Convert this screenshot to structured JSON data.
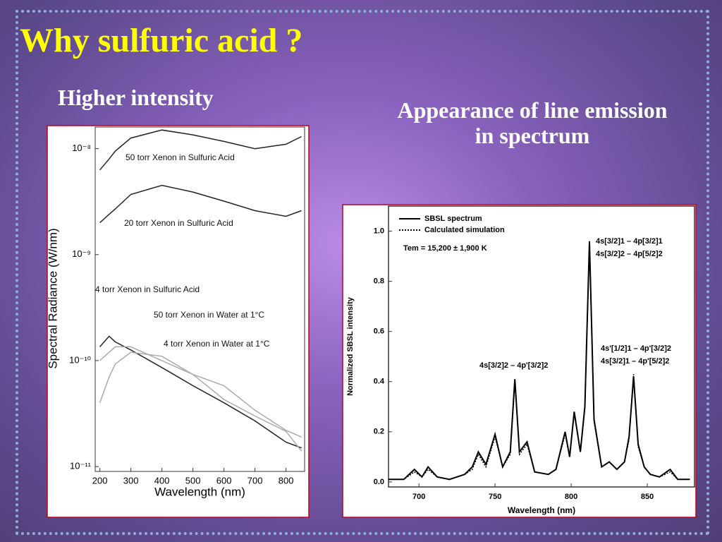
{
  "slide": {
    "title": "Why  sulfuric acid  ?",
    "left_heading": "Higher intensity",
    "right_heading": [
      "Appearance of  line emission",
      "in  spectrum"
    ]
  },
  "chart_data": [
    {
      "type": "line",
      "log_y": true,
      "xlabel": "Wavelength (nm)",
      "ylabel": "Spectral Radiance (W/nm)",
      "x": [
        200,
        230,
        250,
        300,
        400,
        500,
        600,
        700,
        800,
        850
      ],
      "xlim": [
        185,
        860
      ],
      "xticks": [
        200,
        300,
        400,
        500,
        600,
        700,
        800
      ],
      "ylim": [
        9e-12,
        1.6e-08
      ],
      "yticks": [
        {
          "value": 1e-11,
          "label": "10⁻¹¹"
        },
        {
          "value": 1e-10,
          "label": "10⁻¹⁰"
        },
        {
          "value": 1e-09,
          "label": "10⁻⁹"
        },
        {
          "value": 1e-08,
          "label": "10⁻⁸"
        }
      ],
      "series": [
        {
          "name": "50 torr Xenon in Sulfuric Acid",
          "color": "#222222",
          "values": [
            6.3e-09,
            8e-09,
            9.5e-09,
            1.26e-08,
            1.5e-08,
            1.35e-08,
            1.17e-08,
            1e-08,
            1.1e-08,
            1.3e-08
          ]
        },
        {
          "name": "20 torr Xenon in Sulfuric Acid",
          "color": "#222222",
          "values": [
            2e-09,
            2.4e-09,
            2.7e-09,
            3.7e-09,
            4.5e-09,
            3.9e-09,
            3.2e-09,
            2.6e-09,
            2.3e-09,
            2.6e-09
          ]
        },
        {
          "name": "4 torr Xenon in Sulfuric Acid",
          "color": "#222222",
          "values": [
            1.35e-10,
            1.7e-10,
            1.5e-10,
            1.26e-10,
            8.6e-11,
            5.8e-11,
            4e-11,
            2.7e-11,
            1.7e-11,
            1.5e-11
          ]
        },
        {
          "name": "50 torr Xenon in Water at 1°C",
          "color": "#aaaaaa",
          "values": [
            1e-10,
            1.2e-10,
            1.35e-10,
            1.35e-10,
            1e-10,
            7.4e-11,
            4.3e-11,
            3e-11,
            2.15e-11,
            1.4e-11
          ]
        },
        {
          "name": "4 torr Xenon in Water at 1°C",
          "color": "#aaaaaa",
          "values": [
            4e-11,
            7e-11,
            9.3e-11,
            1.2e-10,
            1.1e-10,
            7.4e-11,
            5.8e-11,
            3.4e-11,
            2.2e-11,
            1.9e-11
          ]
        }
      ]
    },
    {
      "type": "line",
      "log_y": false,
      "xlabel": "Wavelength (nm)",
      "ylabel": "Normalized SBSL intensity",
      "x": [
        680,
        690,
        697,
        702,
        706,
        712,
        720,
        730,
        735,
        739,
        744,
        750,
        755,
        760,
        763,
        766,
        771,
        776,
        785,
        790,
        796,
        799,
        802,
        806,
        809,
        812,
        815,
        820,
        825,
        830,
        835,
        838,
        841,
        844,
        848,
        852,
        858,
        865,
        870,
        878
      ],
      "xlim": [
        680,
        881
      ],
      "xticks": [
        700,
        750,
        800,
        850
      ],
      "ylim": [
        -0.02,
        1.1
      ],
      "yticks": [
        {
          "value": 0,
          "label": "0.0"
        },
        0.2,
        0.4,
        0.6,
        0.8,
        {
          "value": 1,
          "label": "1.0"
        }
      ],
      "series": [
        {
          "name": "SBSL spectrum",
          "color": "#000000",
          "style": "solid",
          "values": [
            0.01,
            0.01,
            0.05,
            0.02,
            0.06,
            0.02,
            0.01,
            0.03,
            0.06,
            0.12,
            0.07,
            0.19,
            0.06,
            0.12,
            0.41,
            0.12,
            0.16,
            0.04,
            0.03,
            0.05,
            0.2,
            0.1,
            0.28,
            0.12,
            0.3,
            0.96,
            0.25,
            0.06,
            0.08,
            0.05,
            0.08,
            0.18,
            0.42,
            0.15,
            0.06,
            0.03,
            0.02,
            0.05,
            0.01,
            0.01
          ]
        },
        {
          "name": "Calculated simulation",
          "color": "#000000",
          "style": "dotted",
          "values": [
            0.01,
            0.01,
            0.04,
            0.02,
            0.05,
            0.02,
            0.01,
            0.03,
            0.05,
            0.11,
            0.06,
            0.18,
            0.06,
            0.11,
            0.4,
            0.11,
            0.15,
            0.04,
            0.03,
            0.05,
            0.19,
            0.1,
            0.27,
            0.12,
            0.29,
            0.94,
            0.24,
            0.06,
            0.08,
            0.05,
            0.08,
            0.17,
            0.43,
            0.14,
            0.06,
            0.03,
            0.02,
            0.04,
            0.01,
            0.01
          ]
        }
      ],
      "annotations": [
        "Tem = 15,200 ± 1,900 K",
        "4s[3/2]1 – 4p[3/2]1",
        "4s[3/2]2 – 4p[5/2]2",
        "4s'[1/2]1 – 4p'[3/2]2",
        "4s[3/2]1 – 4p'[5/2]2",
        "4s[3/2]2 – 4p'[3/2]2"
      ]
    }
  ]
}
